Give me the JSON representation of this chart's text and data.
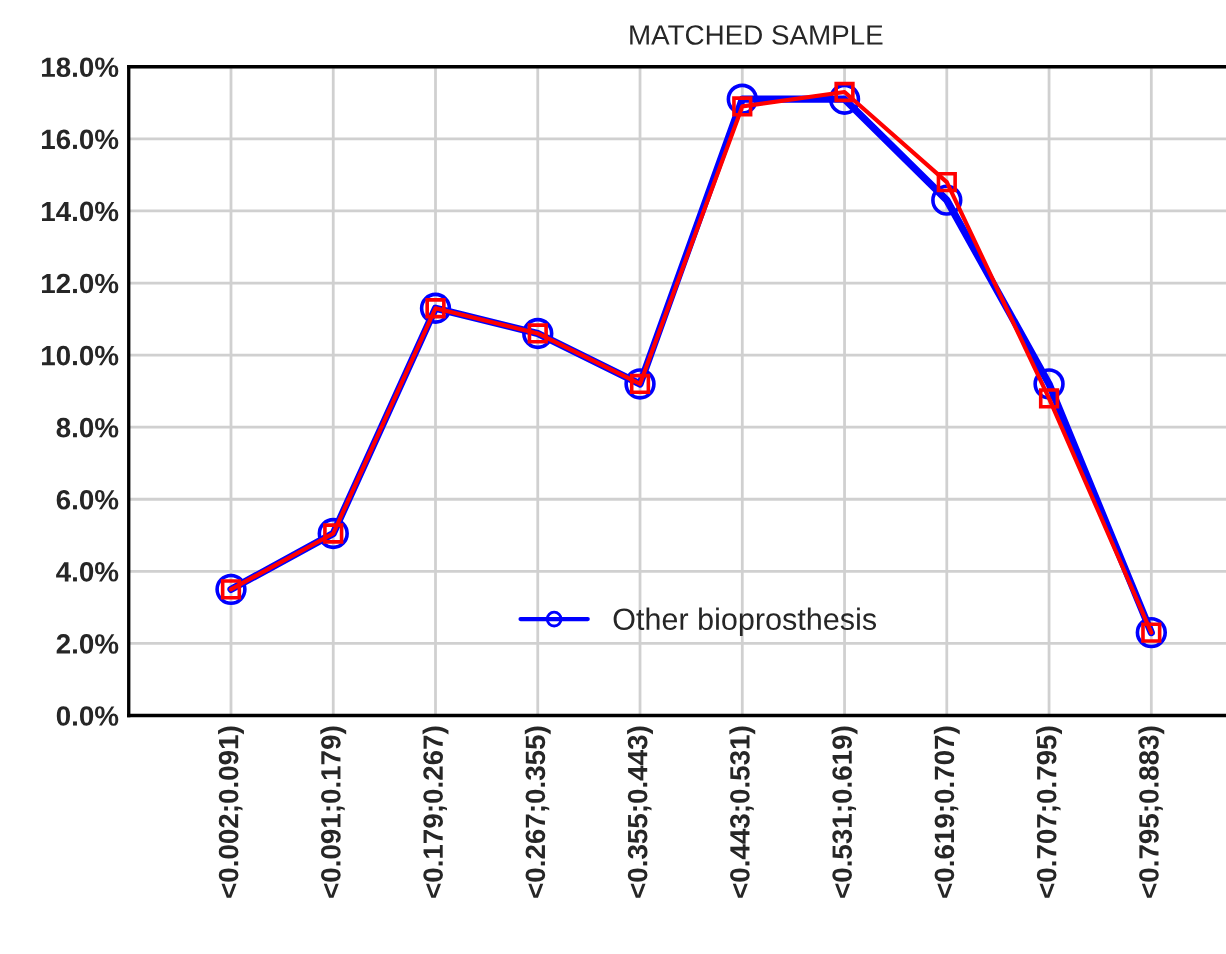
{
  "chart_data": {
    "type": "line",
    "title": "MATCHED SAMPLE",
    "categories": [
      "<0.002;0.091)",
      "<0.091;0.179)",
      "<0.179;0.267)",
      "<0.267;0.355)",
      "<0.355;0.443)",
      "<0.443;0.531)",
      "<0.531;0.619)",
      "<0.619;0.707)",
      "<0.707;0.795)",
      "<0.795;0.883)"
    ],
    "series": [
      {
        "name": "Other bioprosthesis",
        "color": "#0000ff",
        "marker": "circle",
        "values": [
          3.5,
          5.05,
          11.3,
          10.6,
          9.2,
          17.1,
          17.1,
          14.3,
          9.2,
          2.3
        ]
      },
      {
        "color": "#ff0000",
        "marker": "square",
        "values": [
          3.5,
          5.05,
          11.3,
          10.6,
          9.2,
          16.9,
          17.3,
          14.8,
          8.8,
          2.3
        ]
      }
    ],
    "ylim": [
      0,
      18
    ],
    "yticks": [
      {
        "value": 0,
        "label": "0.0%"
      },
      {
        "value": 2,
        "label": "2.0%"
      },
      {
        "value": 4,
        "label": "4.0%"
      },
      {
        "value": 6,
        "label": "6.0%"
      },
      {
        "value": 8,
        "label": "8.0%"
      },
      {
        "value": 10,
        "label": "10.0%"
      },
      {
        "value": 12,
        "label": "12.0%"
      },
      {
        "value": 14,
        "label": "14.0%"
      },
      {
        "value": 16,
        "label": "16.0%"
      },
      {
        "value": 18,
        "label": "18.0%"
      }
    ],
    "grid": true,
    "legend": "bottom",
    "line_style": "solid"
  }
}
